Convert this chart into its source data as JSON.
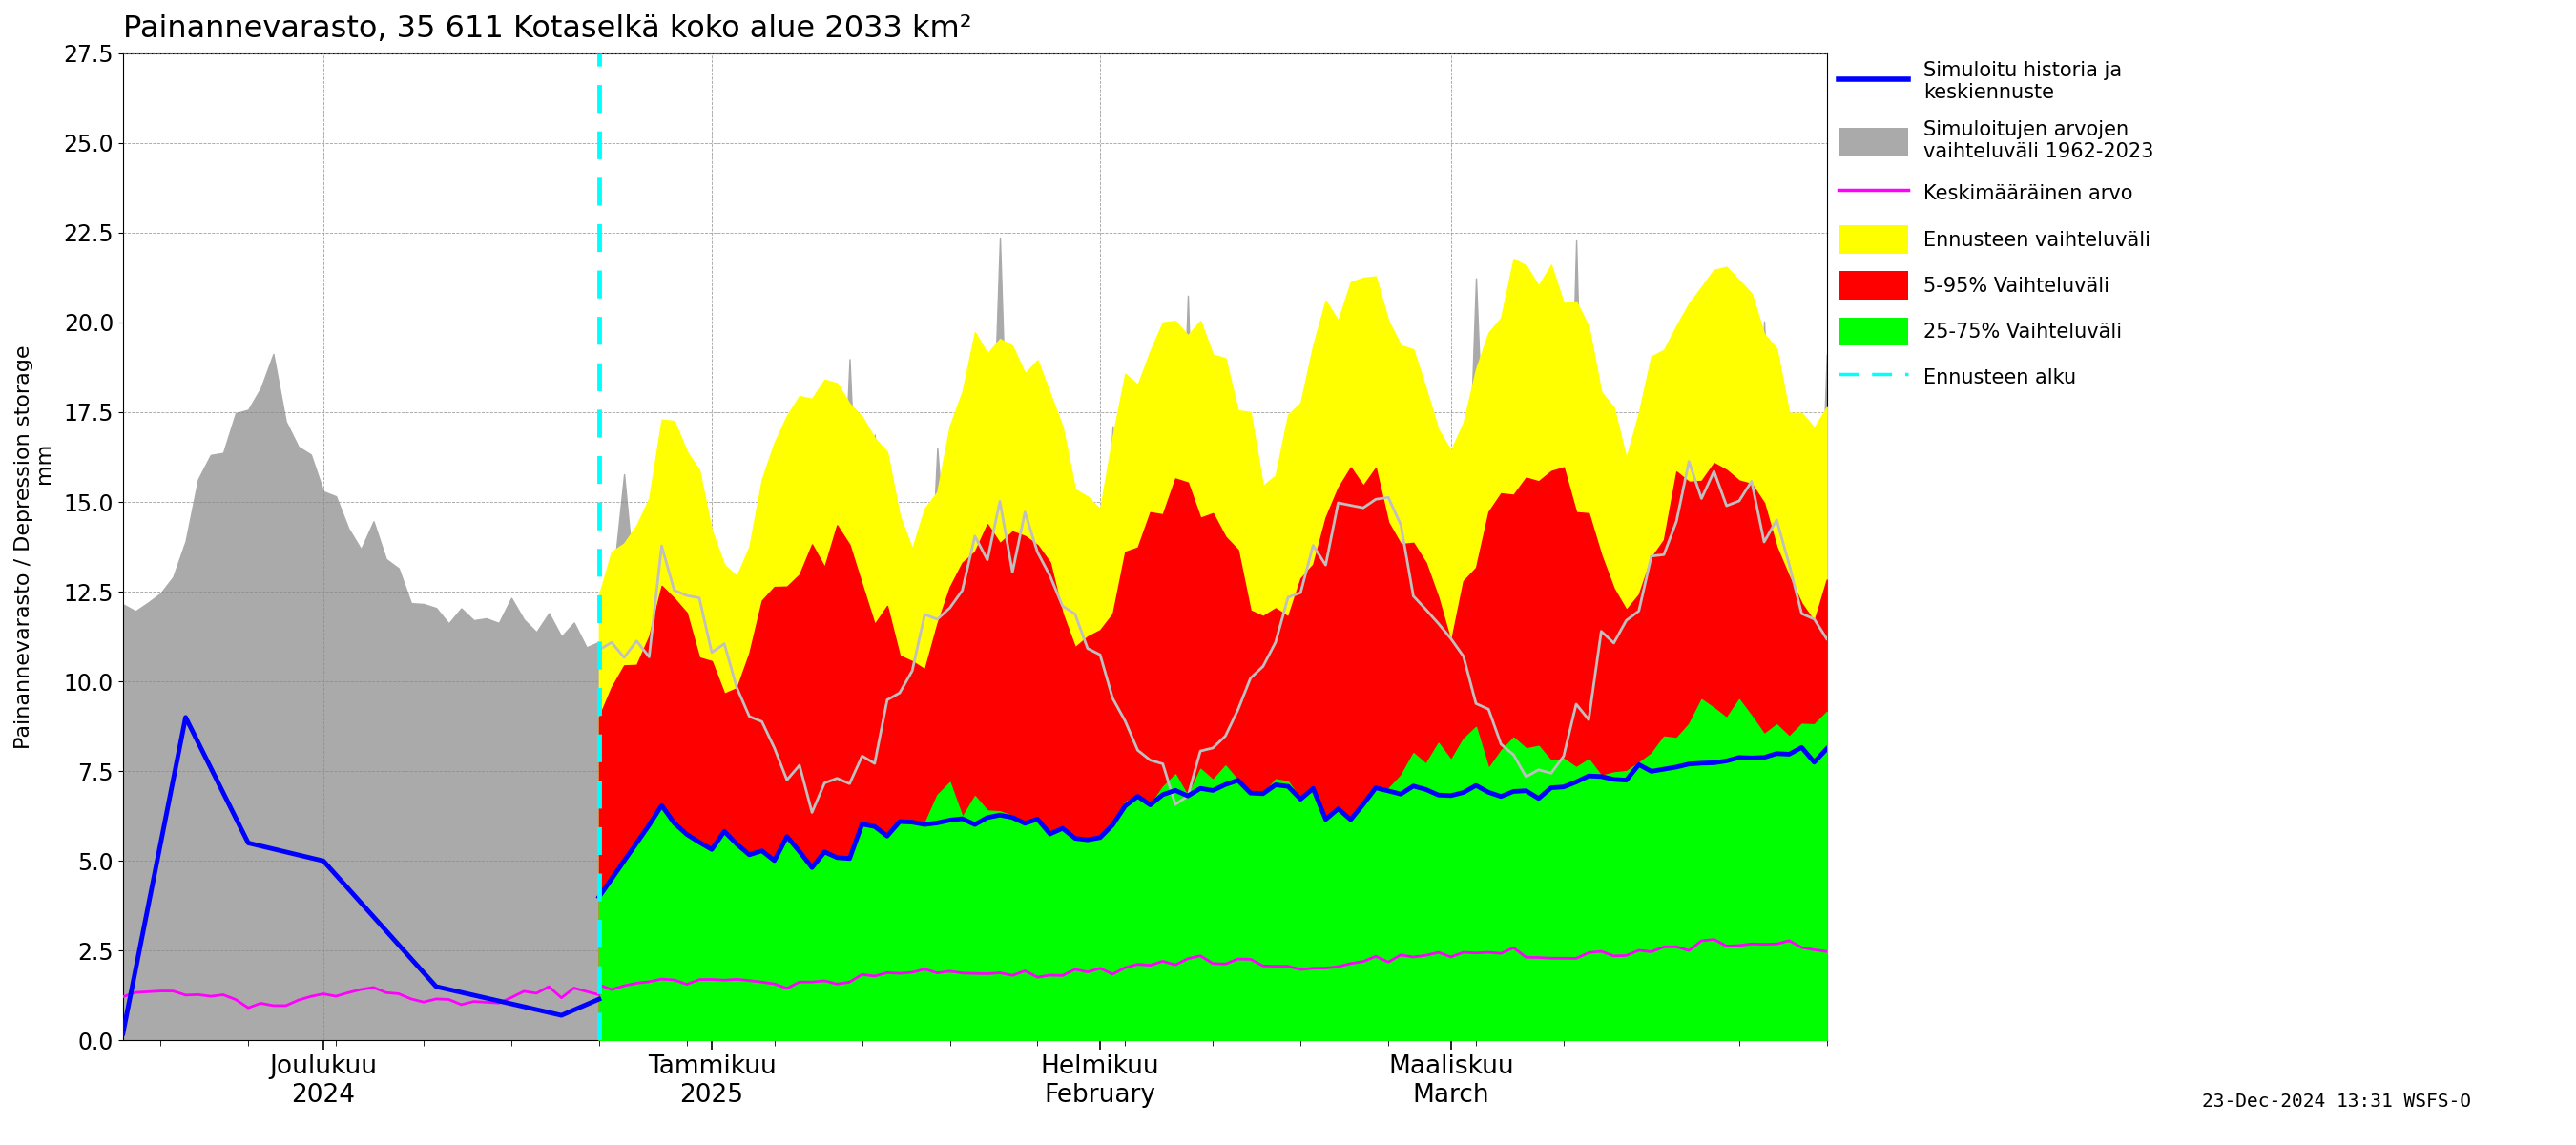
{
  "title": "Painannevarasto, 35 611 Kotaselkä koko alue 2033 km²",
  "ylabel_fi": "Painannevarasto / Depression storage",
  "ylabel_mm": "mm",
  "xlabel_bottom": "23-Dec-2024 13:31 WSFS-O",
  "ylim": [
    0,
    27.5
  ],
  "yticks": [
    0.0,
    2.5,
    5.0,
    7.5,
    10.0,
    12.5,
    15.0,
    17.5,
    20.0,
    22.5,
    25.0,
    27.5
  ],
  "forecast_line_color": "#00FFFF",
  "hist_line_color": "#0000FF",
  "mean_line_color": "#FF00FF",
  "white_line_color": "#C0C0C0",
  "gray_fill_color": "#AAAAAA",
  "yellow_fill_color": "#FFFF00",
  "red_fill_color": "#FF0000",
  "green_fill_color": "#00FF00",
  "background_color": "#FFFFFF",
  "grid_color": "#888888"
}
